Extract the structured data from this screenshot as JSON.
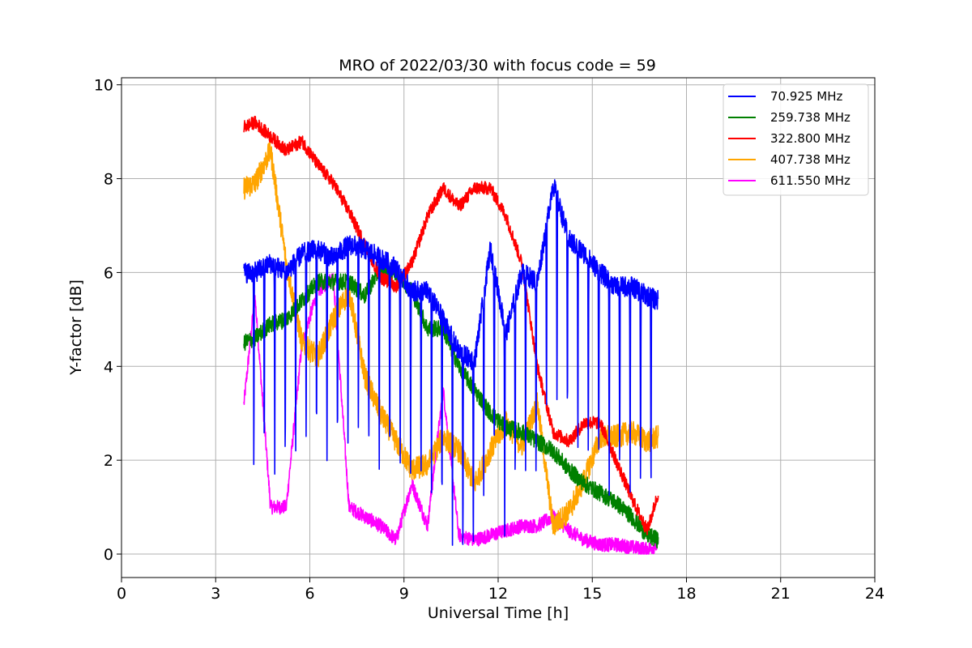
{
  "chart_data": {
    "type": "line",
    "title": "MRO of 2022/03/30 with focus code = 59",
    "xlabel": "Universal Time [h]",
    "ylabel": "Y-factor [dB]",
    "xlim": [
      0,
      24
    ],
    "ylim": [
      -0.5,
      10.15
    ],
    "xticks": [
      0,
      3,
      6,
      9,
      12,
      15,
      18,
      21,
      24
    ],
    "yticks": [
      0,
      2,
      4,
      6,
      8,
      10
    ],
    "grid": true,
    "legend_position": "top-right",
    "series": [
      {
        "name": "70.925 MHz",
        "color": "#0000ff",
        "x": [
          3.9,
          4.25,
          4.75,
          5.25,
          5.75,
          6.25,
          6.75,
          7.25,
          7.75,
          8.25,
          8.75,
          9.25,
          9.75,
          10.25,
          10.75,
          11.25,
          11.75,
          12.25,
          12.75,
          13.25,
          13.75,
          14.25,
          14.75,
          15.25,
          15.75,
          16.25,
          16.75,
          17.1
        ],
        "y": [
          6.0,
          6.0,
          6.2,
          6.0,
          6.4,
          6.5,
          6.3,
          6.6,
          6.5,
          6.3,
          6.1,
          5.6,
          5.6,
          5.0,
          4.3,
          4.1,
          6.5,
          4.7,
          6.0,
          5.8,
          7.9,
          6.7,
          6.4,
          6.0,
          5.7,
          5.7,
          5.5,
          5.4
        ],
        "dip_period": 0.333,
        "dip_depth": 4.5,
        "noise": 0.22
      },
      {
        "name": "259.738 MHz",
        "color": "#008000",
        "x": [
          3.9,
          4.25,
          4.75,
          5.25,
          5.75,
          6.25,
          6.75,
          7.25,
          7.75,
          8.25,
          8.75,
          9.25,
          9.75,
          10.25,
          10.75,
          11.25,
          11.75,
          12.25,
          12.75,
          13.25,
          13.75,
          14.25,
          14.75,
          15.25,
          15.75,
          16.25,
          16.75,
          17.1
        ],
        "y": [
          4.5,
          4.6,
          4.9,
          5.0,
          5.4,
          5.8,
          5.8,
          5.8,
          5.5,
          6.1,
          6.0,
          5.6,
          4.8,
          4.8,
          4.0,
          3.5,
          3.0,
          2.7,
          2.6,
          2.4,
          2.2,
          1.8,
          1.5,
          1.3,
          1.1,
          0.8,
          0.4,
          0.3
        ],
        "noise": 0.18
      },
      {
        "name": "322.800 MHz",
        "color": "#ff0000",
        "x": [
          3.9,
          4.25,
          4.75,
          5.25,
          5.75,
          6.25,
          6.75,
          7.25,
          7.75,
          8.25,
          8.75,
          9.25,
          9.75,
          10.25,
          10.75,
          11.25,
          11.75,
          12.25,
          12.75,
          13.25,
          13.75,
          14.25,
          14.75,
          15.25,
          15.75,
          16.25,
          16.75,
          17.1
        ],
        "y": [
          9.1,
          9.2,
          8.9,
          8.6,
          8.8,
          8.3,
          7.9,
          7.3,
          6.6,
          5.9,
          5.7,
          6.2,
          7.2,
          7.8,
          7.4,
          7.8,
          7.8,
          7.2,
          6.2,
          4.0,
          2.6,
          2.4,
          2.8,
          2.8,
          2.0,
          1.2,
          0.5,
          1.3
        ],
        "noise": 0.14
      },
      {
        "name": "407.738 MHz",
        "color": "#ffa500",
        "x": [
          3.9,
          4.25,
          4.75,
          5.25,
          5.75,
          6.25,
          6.75,
          7.25,
          7.75,
          8.25,
          8.75,
          9.25,
          9.75,
          10.25,
          10.75,
          11.25,
          11.75,
          12.25,
          12.75,
          13.25,
          13.75,
          14.25,
          14.75,
          15.25,
          15.75,
          16.25,
          16.75,
          17.1
        ],
        "y": [
          7.8,
          7.9,
          8.6,
          6.2,
          4.5,
          4.2,
          5.0,
          5.6,
          3.8,
          3.0,
          2.4,
          1.8,
          1.9,
          2.5,
          2.2,
          1.5,
          2.2,
          2.8,
          2.3,
          3.2,
          0.6,
          0.9,
          1.6,
          2.5,
          2.5,
          2.6,
          2.4,
          2.5
        ],
        "noise": 0.25
      },
      {
        "name": "611.550 MHz",
        "color": "#ff00ff",
        "x": [
          3.9,
          4.25,
          4.75,
          5.25,
          5.75,
          6.25,
          6.75,
          7.25,
          7.75,
          8.25,
          8.75,
          9.25,
          9.75,
          10.25,
          10.75,
          11.25,
          11.75,
          12.25,
          12.75,
          13.25,
          13.75,
          14.25,
          14.75,
          15.25,
          15.75,
          16.25,
          16.75,
          17.1
        ],
        "y": [
          3.2,
          5.5,
          1.0,
          1.0,
          4.5,
          5.6,
          5.9,
          1.0,
          0.8,
          0.6,
          0.3,
          1.5,
          0.6,
          3.5,
          0.4,
          0.3,
          0.4,
          0.5,
          0.6,
          0.6,
          0.8,
          0.5,
          0.3,
          0.2,
          0.2,
          0.15,
          0.1,
          0.2
        ],
        "noise": 0.15
      }
    ]
  }
}
